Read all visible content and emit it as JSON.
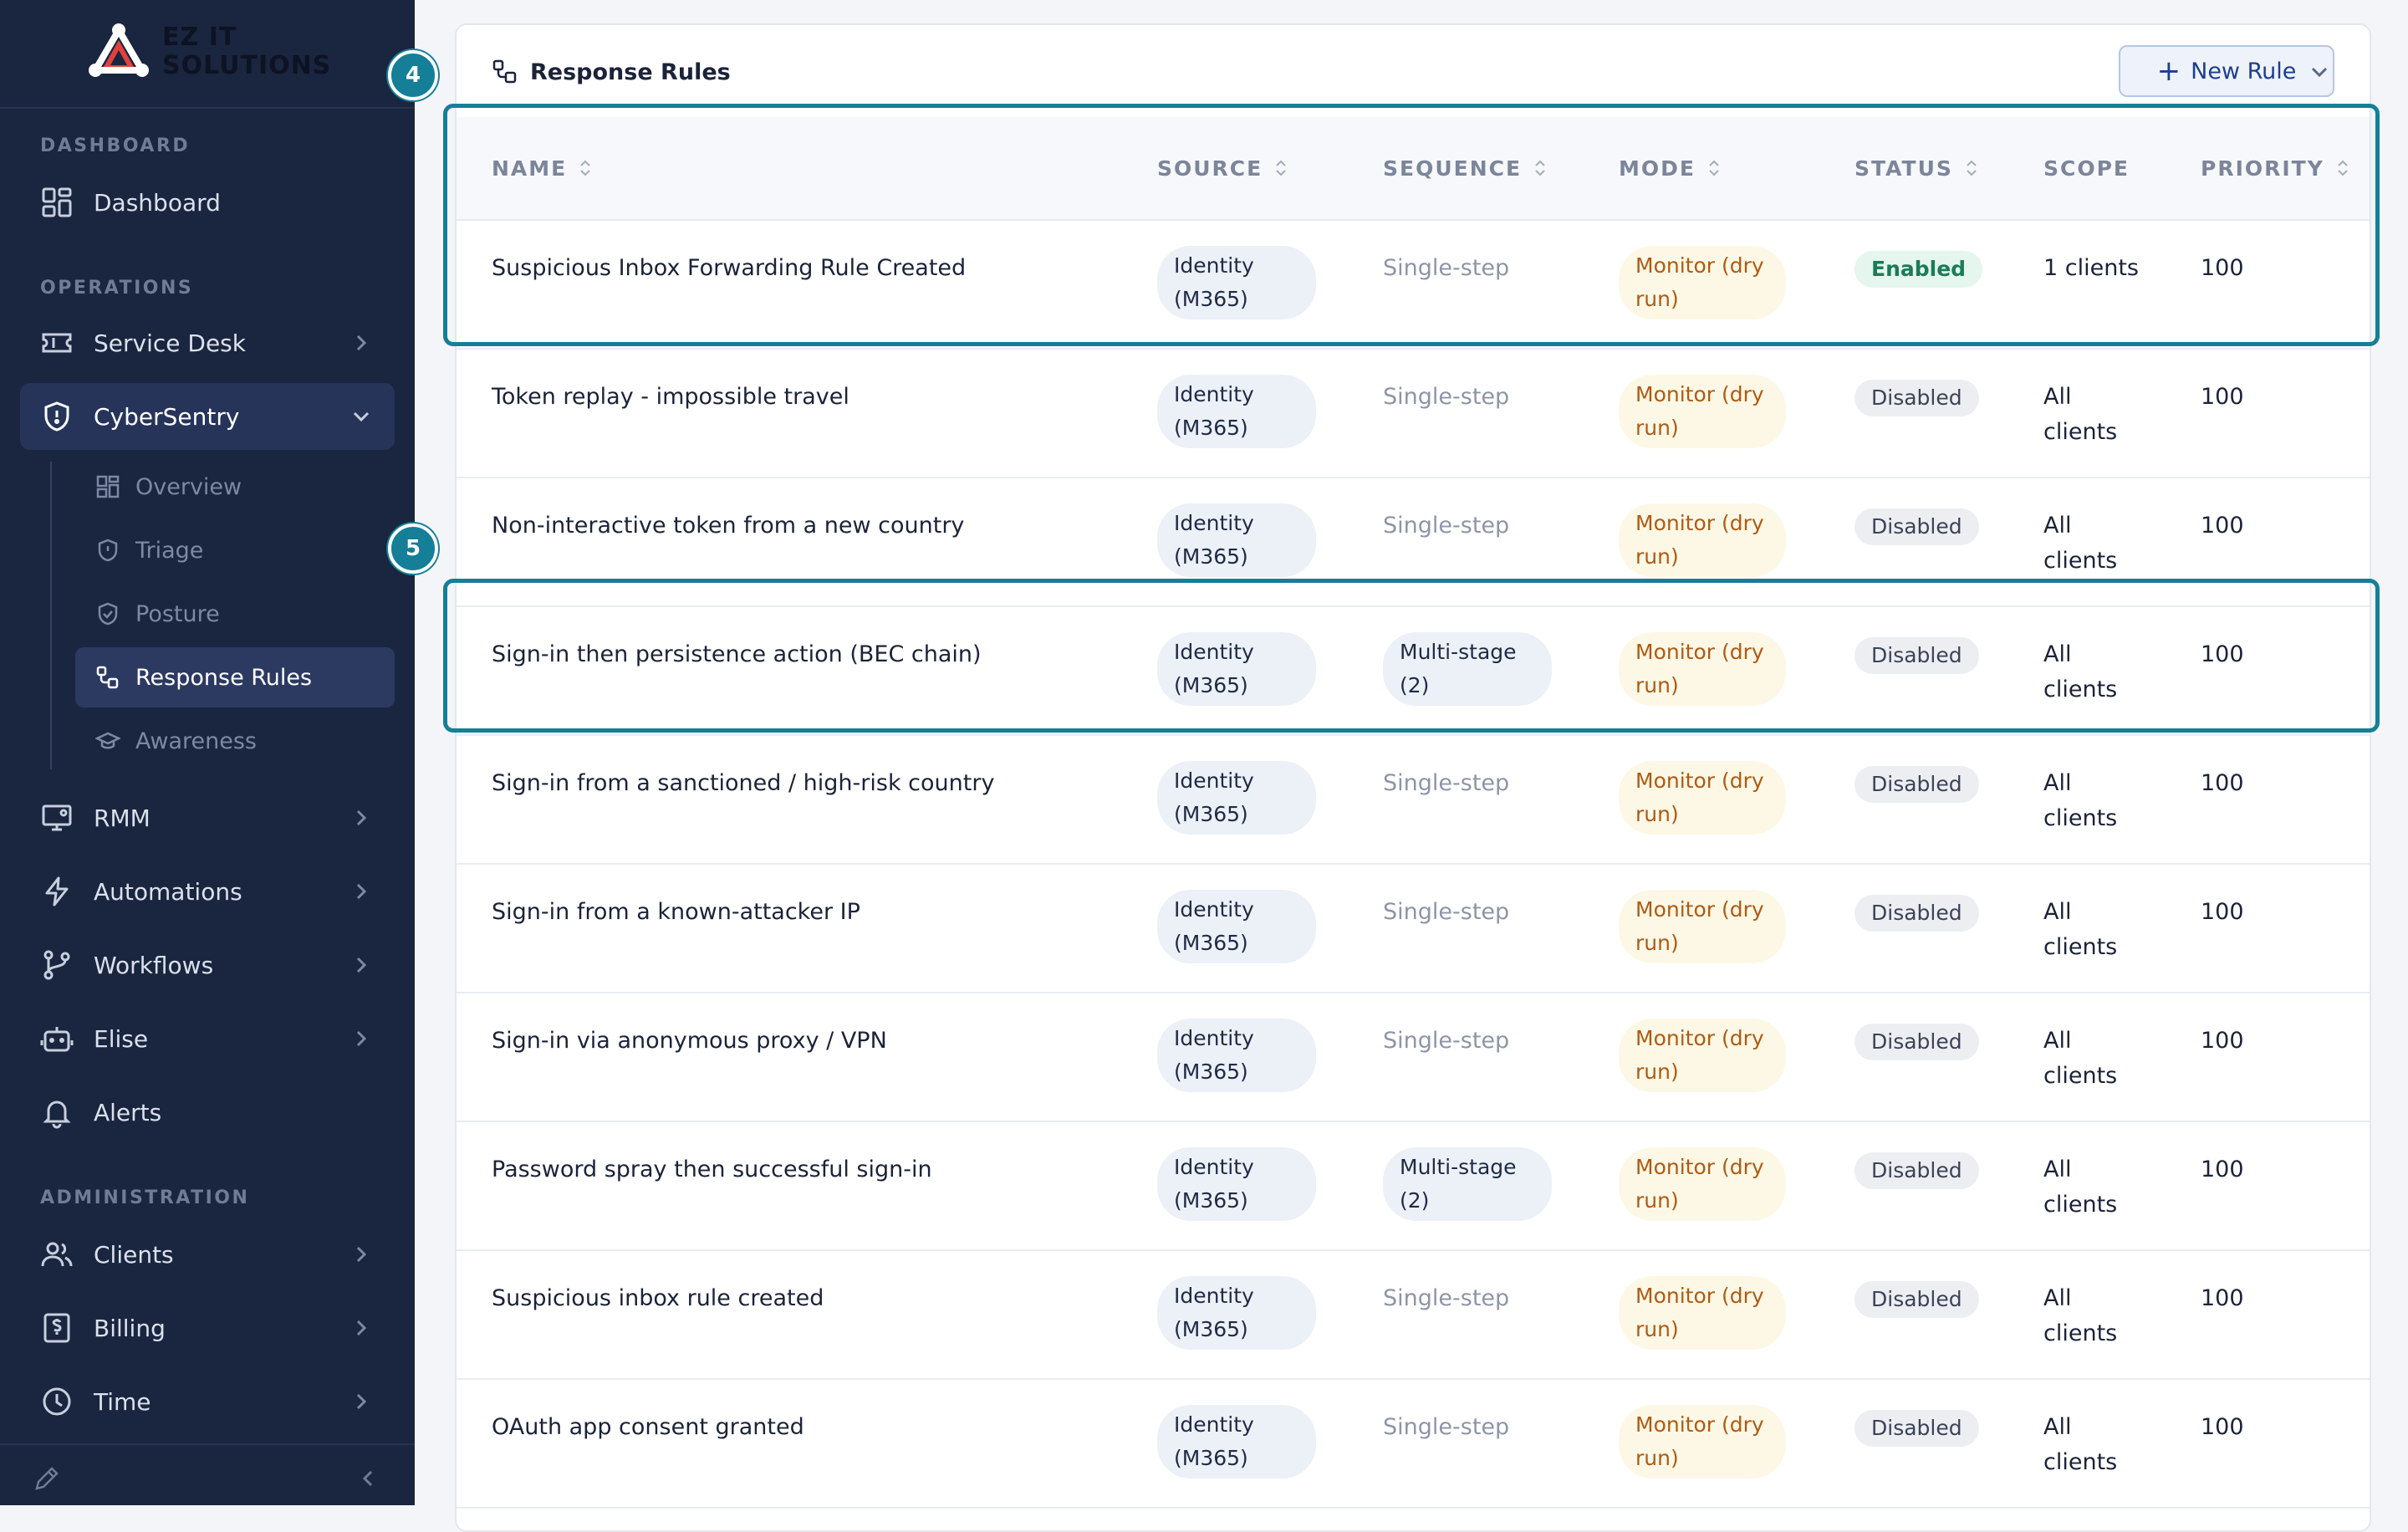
{
  "brand": {
    "line1": "EZ IT",
    "line2": "SOLUTIONS"
  },
  "sidebar": {
    "sections": {
      "dashboard": "DASHBOARD",
      "operations": "OPERATIONS",
      "administration": "ADMINISTRATION"
    },
    "items": {
      "dashboard": "Dashboard",
      "service_desk": "Service Desk",
      "cybersentry": "CyberSentry",
      "rmm": "RMM",
      "automations": "Automations",
      "workflows": "Workflows",
      "elise": "Elise",
      "alerts": "Alerts",
      "clients": "Clients",
      "billing": "Billing",
      "time": "Time"
    },
    "sub_items": {
      "overview": "Overview",
      "triage": "Triage",
      "posture": "Posture",
      "response_rules": "Response Rules",
      "awareness": "Awareness"
    }
  },
  "annotations": {
    "marker_4": "4",
    "marker_5": "5"
  },
  "panel": {
    "title": "Response Rules",
    "new_rule_label": "New Rule"
  },
  "table": {
    "headers": {
      "name": "NAME",
      "source": "SOURCE",
      "sequence": "SEQUENCE",
      "mode": "MODE",
      "status": "STATUS",
      "scope": "SCOPE",
      "priority": "PRIORITY"
    },
    "rows": [
      {
        "name": "Suspicious Inbox Forwarding Rule Created",
        "source": "Identity (M365)",
        "sequence": "Single-step",
        "mode": "Monitor (dry run)",
        "status": "Enabled",
        "scope": "1 clients",
        "priority": "100"
      },
      {
        "name": "Token replay - impossible travel",
        "source": "Identity (M365)",
        "sequence": "Single-step",
        "mode": "Monitor (dry run)",
        "status": "Disabled",
        "scope": "All clients",
        "priority": "100"
      },
      {
        "name": "Non-interactive token from a new country",
        "source": "Identity (M365)",
        "sequence": "Single-step",
        "mode": "Monitor (dry run)",
        "status": "Disabled",
        "scope": "All clients",
        "priority": "100"
      },
      {
        "name": "Sign-in then persistence action (BEC chain)",
        "source": "Identity (M365)",
        "sequence": "Multi-stage (2)",
        "mode": "Monitor (dry run)",
        "status": "Disabled",
        "scope": "All clients",
        "priority": "100"
      },
      {
        "name": "Sign-in from a sanctioned / high-risk country",
        "source": "Identity (M365)",
        "sequence": "Single-step",
        "mode": "Monitor (dry run)",
        "status": "Disabled",
        "scope": "All clients",
        "priority": "100"
      },
      {
        "name": "Sign-in from a known-attacker IP",
        "source": "Identity (M365)",
        "sequence": "Single-step",
        "mode": "Monitor (dry run)",
        "status": "Disabled",
        "scope": "All clients",
        "priority": "100"
      },
      {
        "name": "Sign-in via anonymous proxy / VPN",
        "source": "Identity (M365)",
        "sequence": "Single-step",
        "mode": "Monitor (dry run)",
        "status": "Disabled",
        "scope": "All clients",
        "priority": "100"
      },
      {
        "name": "Password spray then successful sign-in",
        "source": "Identity (M365)",
        "sequence": "Multi-stage (2)",
        "mode": "Monitor (dry run)",
        "status": "Disabled",
        "scope": "All clients",
        "priority": "100"
      },
      {
        "name": "Suspicious inbox rule created",
        "source": "Identity (M365)",
        "sequence": "Single-step",
        "mode": "Monitor (dry run)",
        "status": "Disabled",
        "scope": "All clients",
        "priority": "100"
      },
      {
        "name": "OAuth app consent granted",
        "source": "Identity (M365)",
        "sequence": "Single-step",
        "mode": "Monitor (dry run)",
        "status": "Disabled",
        "scope": "All clients",
        "priority": "100"
      }
    ]
  },
  "colors": {
    "sidebar_bg": "#1a2540",
    "accent_teal": "#157f97",
    "enabled_green": "#1b7c55",
    "mode_orange": "#b05a12"
  }
}
